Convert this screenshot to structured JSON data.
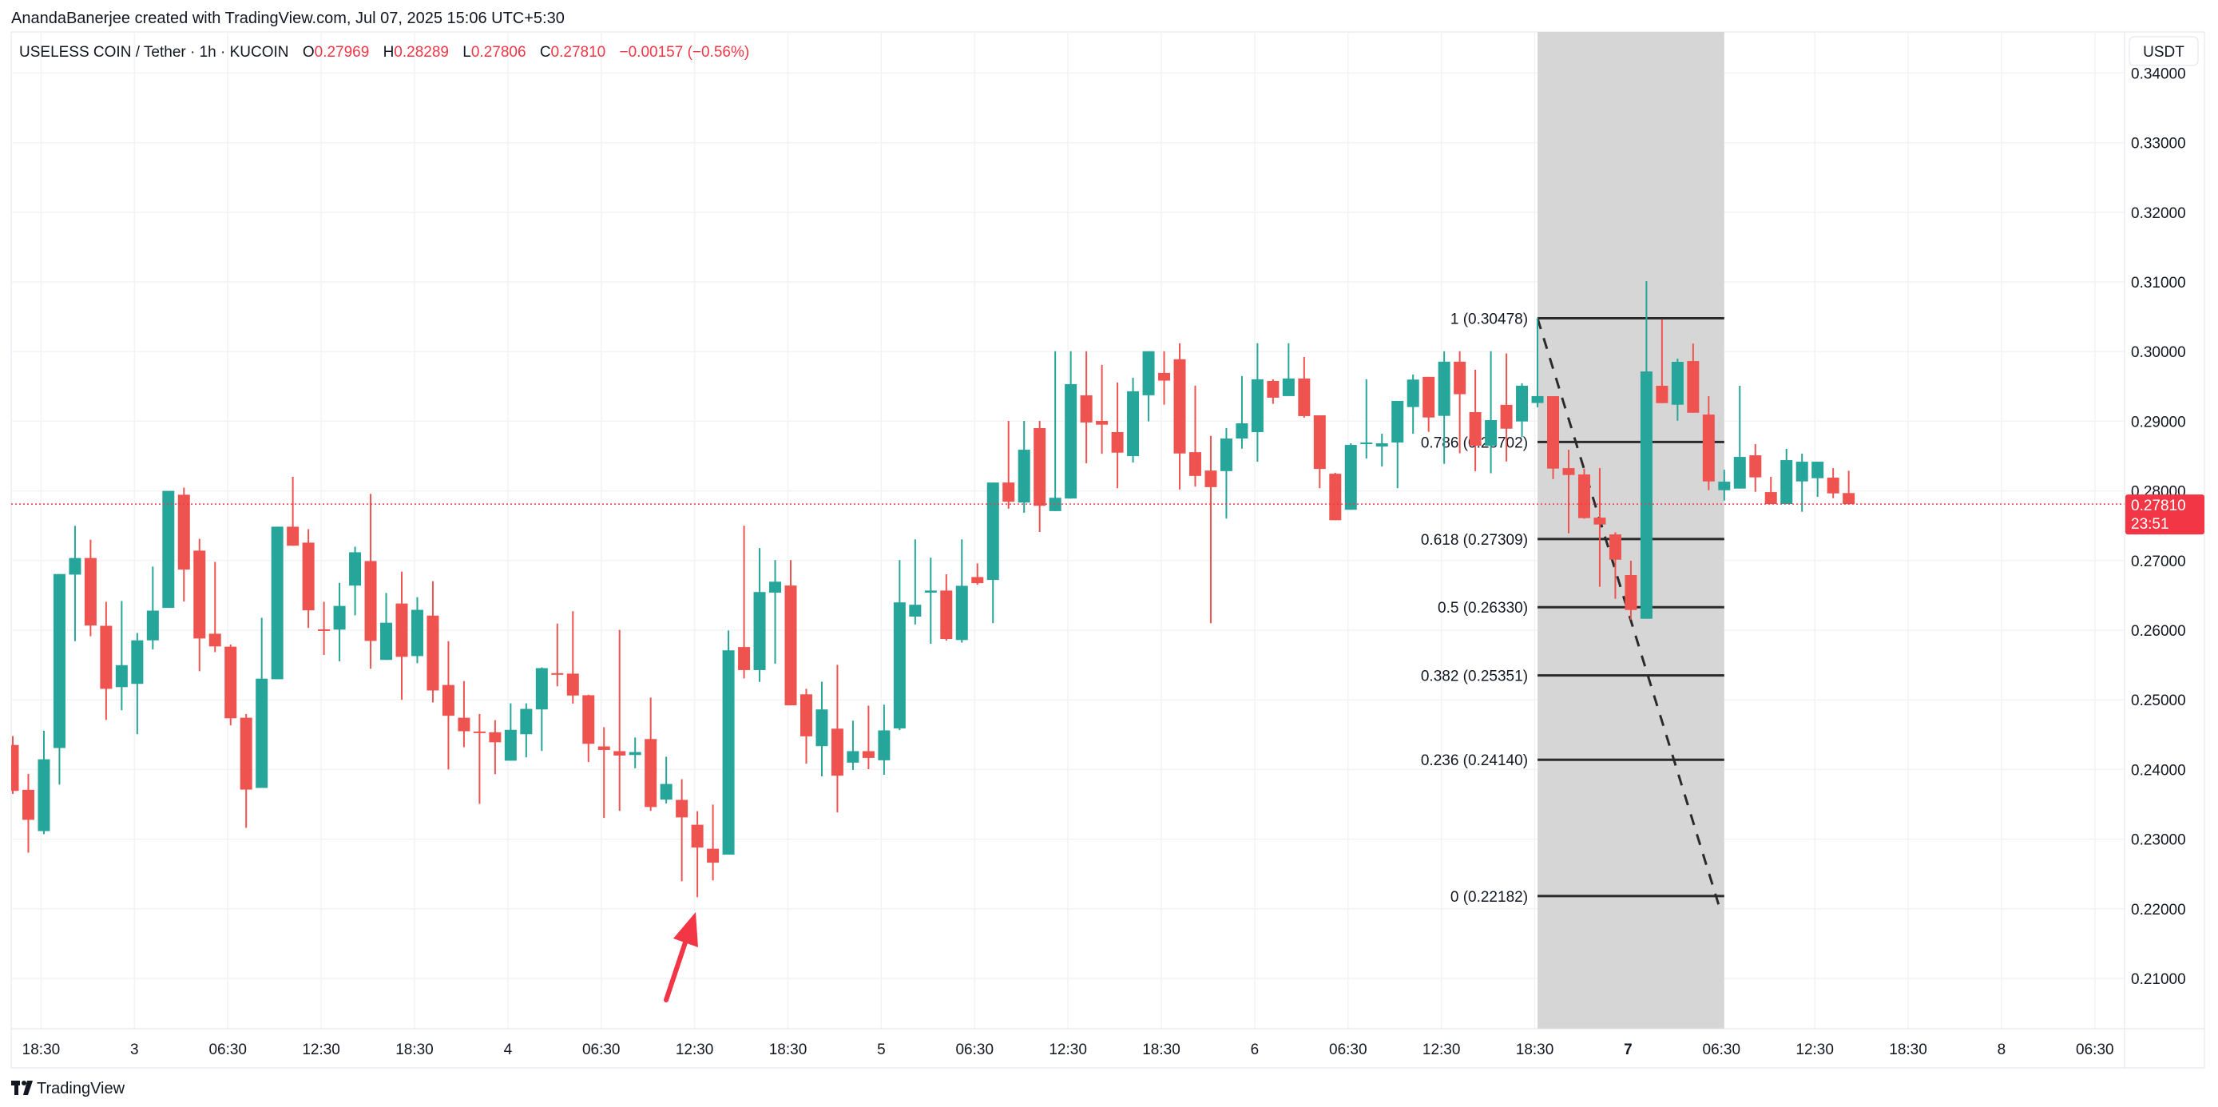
{
  "attribution": "AnandaBanerjee created with TradingView.com, Jul 07, 2025 15:06 UTC+5:30",
  "legend": {
    "symbol": "USELESS COIN / Tether · 1h · KUCOIN",
    "o_label": "O",
    "o": "0.27969",
    "h_label": "H",
    "h": "0.28289",
    "l_label": "L",
    "l": "0.27806",
    "c_label": "C",
    "c": "0.27810",
    "change": "−0.00157 (−0.56%)"
  },
  "currency_button": "USDT",
  "last_price": {
    "value": "0.27810",
    "countdown": "23:51"
  },
  "branding": {
    "name": "TradingView",
    "logo_icon": "tradingview-logo-icon"
  },
  "colors": {
    "up": "#26a69a",
    "down": "#ef5350",
    "last_price": "#f23645",
    "arrow": "#f23645",
    "fib_zone": "#d6d6d6",
    "grid": "#f2f3f5"
  },
  "chart_data": {
    "type": "candlestick",
    "title": "USELESS COIN / Tether · 1h · KUCOIN",
    "ylabel": "USDT",
    "ylim": [
      0.2,
      0.3438
    ],
    "grid": true,
    "y_ticks": [
      "0.34000",
      "0.33000",
      "0.32000",
      "0.31000",
      "0.30000",
      "0.29000",
      "0.28000",
      "0.27000",
      "0.26000",
      "0.25000",
      "0.24000",
      "0.23000",
      "0.22000",
      "0.21000"
    ],
    "x_labels": [
      "18:30",
      "3",
      "06:30",
      "12:30",
      "18:30",
      "4",
      "06:30",
      "12:30",
      "18:30",
      "5",
      "06:30",
      "12:30",
      "18:30",
      "6",
      "06:30",
      "12:30",
      "18:30",
      "7",
      "06:30",
      "12:30",
      "18:30",
      "8",
      "06:30"
    ],
    "candle_fields": [
      "open",
      "high",
      "low",
      "close"
    ],
    "candles": [
      [
        0.24352,
        0.2448,
        0.2365,
        0.23692
      ],
      [
        0.23708,
        0.23937,
        0.22806,
        0.23277
      ],
      [
        0.23115,
        0.24557,
        0.23071,
        0.24146
      ],
      [
        0.24308,
        0.26806,
        0.23783,
        0.26806
      ],
      [
        0.26798,
        0.27498,
        0.25842,
        0.27036
      ],
      [
        0.27036,
        0.273,
        0.25913,
        0.26067
      ],
      [
        0.26063,
        0.26407,
        0.24711,
        0.25158
      ],
      [
        0.25182,
        0.26419,
        0.2485,
        0.25498
      ],
      [
        0.25229,
        0.2596,
        0.24506,
        0.25854
      ],
      [
        0.25854,
        0.26913,
        0.25723,
        0.26281
      ],
      [
        0.2632,
        0.28,
        0.2632,
        0.28
      ],
      [
        0.27945,
        0.28047,
        0.26411,
        0.2687
      ],
      [
        0.27142,
        0.27312,
        0.25411,
        0.25881
      ],
      [
        0.25949,
        0.2698,
        0.25684,
        0.25767
      ],
      [
        0.25763,
        0.25794,
        0.24632,
        0.24735
      ],
      [
        0.24743,
        0.24798,
        0.23162,
        0.23711
      ],
      [
        0.23735,
        0.26178,
        0.23735,
        0.25304
      ],
      [
        0.25296,
        0.27486,
        0.25296,
        0.27486
      ],
      [
        0.27486,
        0.28202,
        0.27213,
        0.27213
      ],
      [
        0.27257,
        0.27451,
        0.26032,
        0.26285
      ],
      [
        0.26012,
        0.26407,
        0.25644,
        0.26004
      ],
      [
        0.26008,
        0.2668,
        0.25553,
        0.26348
      ],
      [
        0.2664,
        0.27198,
        0.26213,
        0.27119
      ],
      [
        0.26992,
        0.27957,
        0.25447,
        0.25846
      ],
      [
        0.25573,
        0.26534,
        0.25573,
        0.26107
      ],
      [
        0.26383,
        0.26842,
        0.25,
        0.25617
      ],
      [
        0.25628,
        0.26474,
        0.25526,
        0.26292
      ],
      [
        0.26209,
        0.26704,
        0.24964,
        0.25134
      ],
      [
        0.25213,
        0.25842,
        0.24,
        0.24771
      ],
      [
        0.24743,
        0.25269,
        0.2432,
        0.24549
      ],
      [
        0.24545,
        0.24798,
        0.23506,
        0.24538
      ],
      [
        0.24534,
        0.24708,
        0.23933,
        0.24391
      ],
      [
        0.24126,
        0.24949,
        0.24126,
        0.24569
      ],
      [
        0.24506,
        0.24949,
        0.24174,
        0.2487
      ],
      [
        0.24862,
        0.25466,
        0.24265,
        0.25455
      ],
      [
        0.25383,
        0.26095,
        0.25194,
        0.25375
      ],
      [
        0.25376,
        0.26272,
        0.24947,
        0.25062
      ],
      [
        0.25066,
        0.25074,
        0.24106,
        0.24369
      ],
      [
        0.24331,
        0.24607,
        0.23304,
        0.2428
      ],
      [
        0.24263,
        0.26004,
        0.23406,
        0.242
      ],
      [
        0.24208,
        0.24459,
        0.24017,
        0.2425
      ],
      [
        0.24437,
        0.25032,
        0.23406,
        0.23461
      ],
      [
        0.23567,
        0.24183,
        0.23512,
        0.23792
      ],
      [
        0.23563,
        0.2386,
        0.22395,
        0.23312
      ],
      [
        0.23206,
        0.23401,
        0.22166,
        0.22879
      ],
      [
        0.22862,
        0.23495,
        0.22408,
        0.22662
      ],
      [
        0.22777,
        0.25995,
        0.22777,
        0.25711
      ],
      [
        0.25758,
        0.27499,
        0.25308,
        0.25427
      ],
      [
        0.25427,
        0.2718,
        0.25257,
        0.26548
      ],
      [
        0.26539,
        0.27006,
        0.2552,
        0.26696
      ],
      [
        0.26641,
        0.27006,
        0.24921,
        0.24921
      ],
      [
        0.25079,
        0.25159,
        0.24085,
        0.24476
      ],
      [
        0.24335,
        0.25261,
        0.23902,
        0.24862
      ],
      [
        0.24586,
        0.25503,
        0.23384,
        0.23911
      ],
      [
        0.24098,
        0.24701,
        0.23992,
        0.24263
      ],
      [
        0.24263,
        0.24917,
        0.24004,
        0.24166
      ],
      [
        0.24132,
        0.2493,
        0.23924,
        0.24561
      ],
      [
        0.2459,
        0.27006,
        0.24565,
        0.26399
      ],
      [
        0.26195,
        0.27304,
        0.26081,
        0.26365
      ],
      [
        0.26539,
        0.2704,
        0.25805,
        0.26569
      ],
      [
        0.26569,
        0.26803,
        0.2585,
        0.25873
      ],
      [
        0.25859,
        0.27304,
        0.25821,
        0.26637
      ],
      [
        0.26763,
        0.26959,
        0.26652,
        0.26675
      ],
      [
        0.26721,
        0.2812,
        0.261,
        0.2812
      ],
      [
        0.2812,
        0.29005,
        0.27744,
        0.27844
      ],
      [
        0.27832,
        0.29005,
        0.27687,
        0.28591
      ],
      [
        0.28901,
        0.29005,
        0.27411,
        0.27786
      ],
      [
        0.2771,
        0.30005,
        0.2771,
        0.27901
      ],
      [
        0.2789,
        0.30005,
        0.2789,
        0.29533
      ],
      [
        0.29372,
        0.30005,
        0.28395,
        0.28982
      ],
      [
        0.29005,
        0.29809,
        0.28533,
        0.28951
      ],
      [
        0.28844,
        0.29556,
        0.28039,
        0.28549
      ],
      [
        0.28499,
        0.29625,
        0.28407,
        0.2943
      ],
      [
        0.29373,
        0.30005,
        0.28997,
        0.30005
      ],
      [
        0.29694,
        0.30005,
        0.29238,
        0.29583
      ],
      [
        0.2989,
        0.3012,
        0.2802,
        0.28537
      ],
      [
        0.28556,
        0.2951,
        0.28062,
        0.28215
      ],
      [
        0.28292,
        0.2879,
        0.261,
        0.28054
      ],
      [
        0.28284,
        0.28901,
        0.27602,
        0.28752
      ],
      [
        0.28752,
        0.29648,
        0.28606,
        0.2897
      ],
      [
        0.28844,
        0.3012,
        0.28418,
        0.29602
      ],
      [
        0.29579,
        0.29602,
        0.2925,
        0.29338
      ],
      [
        0.29361,
        0.3012,
        0.29361,
        0.29614
      ],
      [
        0.29614,
        0.29924,
        0.29051,
        0.29074
      ],
      [
        0.29085,
        0.29085,
        0.28039,
        0.28315
      ],
      [
        0.28246,
        0.28261,
        0.27579,
        0.27579
      ],
      [
        0.27729,
        0.28683,
        0.27729,
        0.2866
      ],
      [
        0.28671,
        0.29602,
        0.28464,
        0.28694
      ],
      [
        0.28637,
        0.28821,
        0.28349,
        0.28683
      ],
      [
        0.28694,
        0.29292,
        0.28039,
        0.29292
      ],
      [
        0.29204,
        0.29671,
        0.28821,
        0.29598
      ],
      [
        0.29637,
        0.29637,
        0.28848,
        0.29054
      ],
      [
        0.29077,
        0.30005,
        0.28388,
        0.29855
      ],
      [
        0.29855,
        0.30005,
        0.2854,
        0.29388
      ],
      [
        0.29131,
        0.2974,
        0.28284,
        0.28648
      ],
      [
        0.28648,
        0.30005,
        0.28254,
        0.29016
      ],
      [
        0.29235,
        0.29974,
        0.28422,
        0.28893
      ],
      [
        0.28997,
        0.29545,
        0.28771,
        0.2951
      ],
      [
        0.29262,
        0.30478,
        0.292,
        0.29361
      ],
      [
        0.2936,
        0.2936,
        0.28171,
        0.2832
      ],
      [
        0.28327,
        0.28591,
        0.27391,
        0.28228
      ],
      [
        0.28236,
        0.2832,
        0.276,
        0.27609
      ],
      [
        0.27616,
        0.28327,
        0.26623,
        0.27517
      ],
      [
        0.27375,
        0.27406,
        0.2645,
        0.27012
      ],
      [
        0.26791,
        0.26997,
        0.26152,
        0.2629
      ],
      [
        0.26164,
        0.31011,
        0.26164,
        0.29715
      ],
      [
        0.29509,
        0.30464,
        0.2926,
        0.2926
      ],
      [
        0.29237,
        0.29899,
        0.29008,
        0.29853
      ],
      [
        0.29864,
        0.30116,
        0.29122,
        0.29122
      ],
      [
        0.29096,
        0.2936,
        0.2801,
        0.28136
      ],
      [
        0.2801,
        0.28304,
        0.27861,
        0.28132
      ],
      [
        0.28033,
        0.29509,
        0.28033,
        0.28488
      ],
      [
        0.28511,
        0.28671,
        0.27987,
        0.28194
      ],
      [
        0.27983,
        0.28201,
        0.2781,
        0.27811
      ],
      [
        0.27811,
        0.28603,
        0.2781,
        0.28442
      ],
      [
        0.28136,
        0.28534,
        0.277,
        0.28419
      ],
      [
        0.28182,
        0.28419,
        0.27914,
        0.28419
      ],
      [
        0.2819,
        0.28327,
        0.27895,
        0.27964
      ],
      [
        0.27969,
        0.28289,
        0.27806,
        0.2781
      ]
    ],
    "current_price": 0.2781,
    "fibonacci": {
      "start_candle": 98,
      "end_candle": 110,
      "high": 0.30478,
      "low": 0.22182,
      "levels": [
        {
          "ratio": 1,
          "price": 0.30478,
          "label": "1 (0.30478)"
        },
        {
          "ratio": 0.786,
          "price": 0.28702,
          "label": "0.786 (0.28702)"
        },
        {
          "ratio": 0.618,
          "price": 0.27309,
          "label": "0.618 (0.27309)"
        },
        {
          "ratio": 0.5,
          "price": 0.2633,
          "label": "0.5 (0.26330)"
        },
        {
          "ratio": 0.382,
          "price": 0.25351,
          "label": "0.382 (0.25351)"
        },
        {
          "ratio": 0.236,
          "price": 0.2414,
          "label": "0.236 (0.24140)"
        },
        {
          "ratio": 0,
          "price": 0.22182,
          "label": "0 (0.22182)"
        }
      ]
    },
    "annotations": [
      {
        "type": "arrow",
        "points_to_candle": 44,
        "price": 0.22166
      }
    ]
  }
}
